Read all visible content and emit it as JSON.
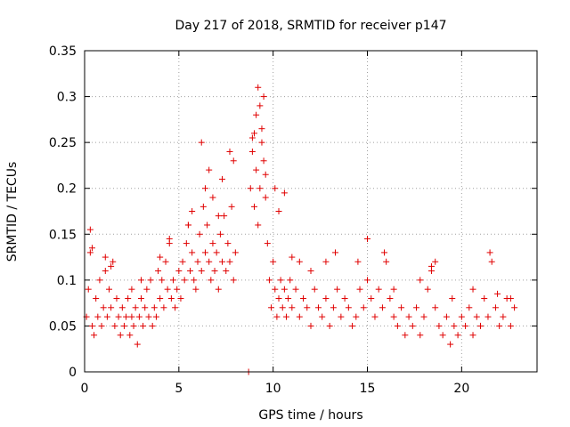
{
  "chart_data": {
    "type": "scatter",
    "title": "Day 217 of 2018, SRMTID for receiver p147",
    "xlabel": "GPS time / hours",
    "ylabel": "SRMTID / TECUs",
    "xlim": [
      0,
      24
    ],
    "ylim": [
      0,
      0.35
    ],
    "x_ticks": [
      0,
      5,
      10,
      15,
      20
    ],
    "x_tick_labels": [
      "0",
      "5",
      "10",
      "15",
      "20"
    ],
    "y_ticks": [
      0,
      0.05,
      0.1,
      0.15,
      0.2,
      0.25,
      0.3,
      0.35
    ],
    "y_tick_labels": [
      "0",
      "0.05",
      "0.1",
      "0.15",
      "0.2",
      "0.25",
      "0.3",
      "0.35"
    ],
    "grid": true,
    "marker": "+",
    "color": "#e00000",
    "series": [
      {
        "name": "SRMTID",
        "x": [
          0.1,
          0.2,
          0.3,
          0.4,
          0.5,
          0.6,
          0.7,
          0.8,
          0.9,
          1.0,
          1.1,
          1.2,
          1.3,
          1.4,
          1.5,
          1.6,
          1.7,
          1.8,
          1.9,
          2.0,
          2.1,
          2.2,
          2.3,
          2.4,
          2.5,
          2.6,
          2.7,
          2.8,
          2.9,
          3.0,
          3.1,
          3.2,
          3.3,
          3.4,
          3.5,
          3.6,
          3.7,
          3.8,
          3.9,
          4.0,
          4.1,
          4.2,
          4.3,
          4.4,
          4.5,
          4.6,
          4.7,
          4.8,
          4.9,
          5.0,
          5.1,
          5.2,
          5.3,
          5.4,
          5.5,
          5.6,
          5.7,
          5.8,
          5.9,
          6.0,
          6.1,
          6.2,
          6.3,
          6.4,
          6.5,
          6.6,
          6.7,
          6.8,
          6.9,
          7.0,
          7.1,
          7.2,
          7.3,
          7.4,
          7.5,
          7.6,
          7.7,
          7.8,
          7.9,
          8.0,
          8.8,
          8.9,
          9.0,
          9.1,
          9.2,
          9.3,
          9.4,
          9.5,
          9.6,
          9.7,
          9.8,
          9.9,
          10.0,
          10.1,
          10.2,
          10.3,
          10.4,
          10.5,
          10.6,
          10.7,
          10.8,
          10.9,
          11.0,
          11.2,
          11.4,
          11.6,
          11.8,
          12.0,
          12.2,
          12.4,
          12.6,
          12.8,
          13.0,
          13.2,
          13.4,
          13.6,
          13.8,
          14.0,
          14.2,
          14.4,
          14.6,
          14.8,
          15.0,
          15.2,
          15.4,
          15.6,
          15.8,
          16.0,
          16.2,
          16.4,
          16.6,
          16.8,
          17.0,
          17.2,
          17.4,
          17.6,
          17.8,
          18.0,
          18.2,
          18.4,
          18.6,
          18.8,
          19.0,
          19.2,
          19.4,
          19.6,
          19.8,
          20.0,
          20.2,
          20.4,
          20.6,
          20.8,
          21.0,
          21.2,
          21.4,
          21.6,
          21.8,
          22.0,
          22.2,
          22.4,
          22.6,
          22.8,
          0.3,
          0.4,
          1.1,
          1.4,
          2.5,
          3.0,
          4.0,
          4.5,
          5.5,
          5.7,
          6.2,
          6.4,
          6.6,
          6.8,
          7.1,
          7.3,
          7.7,
          7.9,
          8.7,
          8.9,
          9.0,
          9.1,
          9.2,
          9.3,
          9.4,
          9.5,
          9.6,
          10.1,
          10.3,
          10.6,
          11.0,
          11.4,
          12.0,
          12.8,
          13.3,
          14.5,
          15.0,
          15.9,
          16.4,
          17.8,
          18.4,
          18.6,
          19.5,
          20.6,
          21.5,
          21.9,
          22.6
        ],
        "y": [
          0.06,
          0.09,
          0.13,
          0.05,
          0.04,
          0.08,
          0.06,
          0.1,
          0.05,
          0.07,
          0.11,
          0.06,
          0.09,
          0.07,
          0.12,
          0.05,
          0.08,
          0.06,
          0.04,
          0.07,
          0.05,
          0.06,
          0.08,
          0.04,
          0.06,
          0.05,
          0.07,
          0.03,
          0.06,
          0.08,
          0.05,
          0.07,
          0.09,
          0.06,
          0.1,
          0.05,
          0.07,
          0.06,
          0.11,
          0.08,
          0.1,
          0.07,
          0.12,
          0.09,
          0.14,
          0.08,
          0.1,
          0.07,
          0.09,
          0.11,
          0.08,
          0.12,
          0.1,
          0.14,
          0.16,
          0.11,
          0.13,
          0.1,
          0.09,
          0.12,
          0.15,
          0.11,
          0.18,
          0.13,
          0.16,
          0.12,
          0.1,
          0.14,
          0.11,
          0.13,
          0.09,
          0.15,
          0.12,
          0.17,
          0.11,
          0.14,
          0.12,
          0.18,
          0.1,
          0.13,
          0.2,
          0.24,
          0.18,
          0.22,
          0.16,
          0.2,
          0.25,
          0.3,
          0.19,
          0.14,
          0.1,
          0.07,
          0.12,
          0.09,
          0.06,
          0.08,
          0.1,
          0.07,
          0.09,
          0.06,
          0.08,
          0.1,
          0.07,
          0.09,
          0.06,
          0.08,
          0.07,
          0.05,
          0.09,
          0.07,
          0.06,
          0.08,
          0.05,
          0.07,
          0.09,
          0.06,
          0.08,
          0.07,
          0.05,
          0.06,
          0.09,
          0.07,
          0.1,
          0.08,
          0.06,
          0.09,
          0.07,
          0.12,
          0.08,
          0.06,
          0.05,
          0.07,
          0.04,
          0.06,
          0.05,
          0.07,
          0.04,
          0.06,
          0.09,
          0.11,
          0.07,
          0.05,
          0.04,
          0.06,
          0.03,
          0.05,
          0.04,
          0.06,
          0.05,
          0.07,
          0.04,
          0.06,
          0.05,
          0.08,
          0.06,
          0.12,
          0.07,
          0.05,
          0.06,
          0.08,
          0.05,
          0.07,
          0.155,
          0.135,
          0.125,
          0.115,
          0.09,
          0.1,
          0.125,
          0.145,
          0.16,
          0.175,
          0.25,
          0.2,
          0.22,
          0.19,
          0.17,
          0.21,
          0.24,
          0.23,
          0.0,
          0.255,
          0.26,
          0.28,
          0.31,
          0.29,
          0.265,
          0.23,
          0.215,
          0.2,
          0.175,
          0.195,
          0.125,
          0.12,
          0.11,
          0.12,
          0.13,
          0.12,
          0.145,
          0.13,
          0.09,
          0.1,
          0.115,
          0.12,
          0.08,
          0.09,
          0.13,
          0.085,
          0.08
        ]
      }
    ]
  }
}
